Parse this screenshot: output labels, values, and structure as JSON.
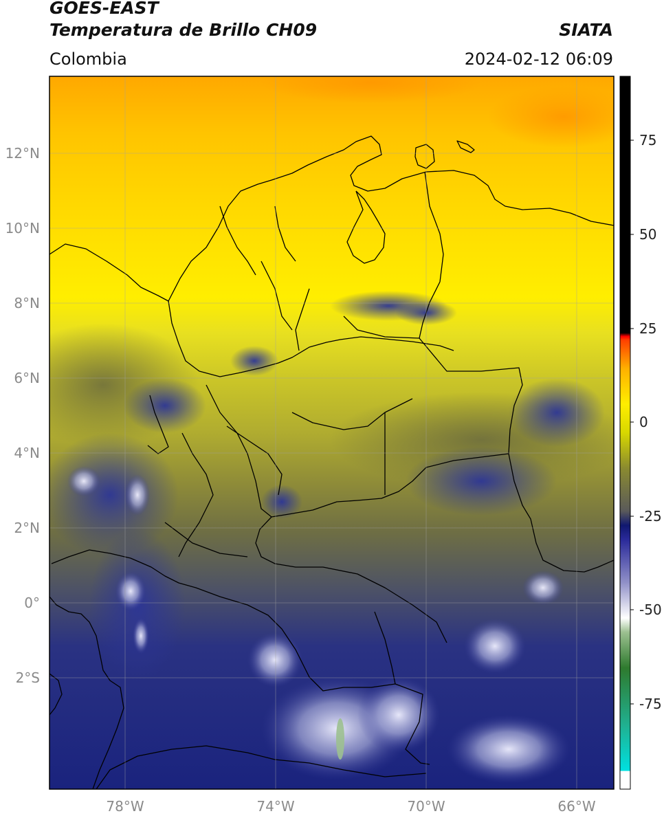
{
  "header": {
    "satellite": "GOES-EAST",
    "product": "Temperatura de Brillo CH09",
    "region": "Colombia",
    "agency": "SIATA",
    "datetime": "2024-02-12 06:09"
  },
  "map": {
    "lon_range": [
      -80.0,
      -65.0
    ],
    "lat_range": [
      -5.2,
      14.0
    ],
    "lon_ticks": [
      {
        "value": -78,
        "label": "78°W"
      },
      {
        "value": -74,
        "label": "74°W"
      },
      {
        "value": -70,
        "label": "70°W"
      },
      {
        "value": -66,
        "label": "66°W"
      }
    ],
    "lat_ticks": [
      {
        "value": 12,
        "label": "12°N"
      },
      {
        "value": 10,
        "label": "10°N"
      },
      {
        "value": 8,
        "label": "8°N"
      },
      {
        "value": 6,
        "label": "6°N"
      },
      {
        "value": 4,
        "label": "4°N"
      },
      {
        "value": 2,
        "label": "2°N"
      },
      {
        "value": 0,
        "label": "0°"
      },
      {
        "value": -2,
        "label": "2°S"
      }
    ],
    "grid": true
  },
  "colorbar": {
    "range": [
      -95,
      90
    ],
    "ticks": [
      {
        "value": 75,
        "label": "75"
      },
      {
        "value": 50,
        "label": "50"
      },
      {
        "value": 25,
        "label": "25"
      },
      {
        "value": 0,
        "label": "0"
      },
      {
        "value": -25,
        "label": "-25"
      },
      {
        "value": -50,
        "label": "-50"
      },
      {
        "value": -75,
        "label": "-75"
      }
    ]
  },
  "colors": {
    "yellow_warm": "#ffd800",
    "olive": "#8c8a3a",
    "navy": "#1a237e",
    "orange": "#ffb000",
    "black": "#000000"
  }
}
